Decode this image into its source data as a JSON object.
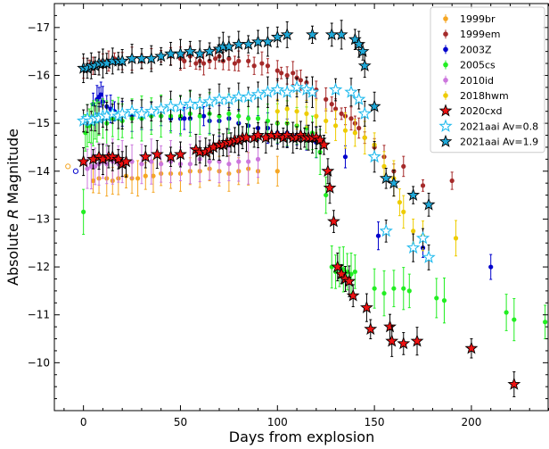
{
  "chart_data": {
    "type": "scatter",
    "xlabel": "Days from explosion",
    "ylabel_prefix": "Absolute ",
    "ylabel_var": "R",
    "ylabel_suffix": " Magnitude",
    "xlim": [
      -15,
      240
    ],
    "ylim": [
      -9,
      -17.5
    ],
    "y_inverted": true,
    "x_ticks": [
      0,
      50,
      100,
      150,
      200
    ],
    "y_ticks": [
      -17,
      -16,
      -15,
      -14,
      -13,
      -12,
      -11,
      -10
    ],
    "x_tick_labels": [
      "0",
      "50",
      "100",
      "150",
      "200"
    ],
    "y_tick_labels": [
      "−17",
      "−16",
      "−15",
      "−14",
      "−13",
      "−12",
      "−11",
      "−10"
    ],
    "grid": false,
    "legend_position": "top-right",
    "legend": [
      {
        "label": "1999br",
        "series": 0
      },
      {
        "label": "1999em",
        "series": 1
      },
      {
        "label": "2003Z",
        "series": 2
      },
      {
        "label": "2005cs",
        "series": 3
      },
      {
        "label": "2010id",
        "series": 4
      },
      {
        "label": "2018hwm",
        "series": 5
      },
      {
        "label": "2020cxd",
        "series": 6
      },
      {
        "label": "2021aai Av=0.8",
        "series": 7
      },
      {
        "label": "2021aai Av=1.9",
        "series": 8
      }
    ],
    "series": [
      {
        "name": "1999br",
        "marker": "circle",
        "color": "#f5a623",
        "err": 0.25,
        "x": [
          5,
          8,
          12,
          15,
          18,
          22,
          25,
          28,
          32,
          36,
          40,
          45,
          50,
          55,
          60,
          65,
          70,
          75,
          80,
          85,
          90,
          100
        ],
        "y": [
          -13.8,
          -13.85,
          -13.85,
          -13.8,
          -13.85,
          -13.9,
          -13.85,
          -13.85,
          -13.9,
          -13.9,
          -13.95,
          -13.95,
          -13.95,
          -14.0,
          -14.0,
          -14.05,
          -14.0,
          -13.95,
          -14.0,
          -14.05,
          -14.0,
          -14.0
        ]
      },
      {
        "name": "1999em",
        "marker": "circle",
        "color": "#a52a2a",
        "err": 0.12,
        "x": [
          0,
          3,
          5,
          8,
          10,
          13,
          16,
          20,
          25,
          30,
          35,
          40,
          45,
          50,
          52,
          55,
          58,
          60,
          62,
          65,
          68,
          70,
          72,
          75,
          78,
          80,
          85,
          88,
          92,
          95,
          100,
          102,
          105,
          108,
          110,
          112,
          115,
          120,
          125,
          128,
          130,
          133,
          135,
          138,
          140,
          142,
          145,
          150,
          155,
          160,
          165,
          175,
          190
        ],
        "y": [
          -16.15,
          -16.2,
          -16.2,
          -16.25,
          -16.3,
          -16.3,
          -16.35,
          -16.3,
          -16.35,
          -16.3,
          -16.35,
          -16.4,
          -16.4,
          -16.35,
          -16.3,
          -16.4,
          -16.25,
          -16.3,
          -16.25,
          -16.3,
          -16.35,
          -16.4,
          -16.3,
          -16.35,
          -16.25,
          -16.3,
          -16.3,
          -16.2,
          -16.25,
          -16.2,
          -16.1,
          -16.05,
          -16.0,
          -16.05,
          -15.95,
          -15.9,
          -15.85,
          -15.7,
          -15.5,
          -15.4,
          -15.3,
          -15.2,
          -15.15,
          -15.1,
          -15.0,
          -14.9,
          -14.7,
          -14.5,
          -14.3,
          -14.0,
          -14.1,
          -13.7,
          -13.8
        ]
      },
      {
        "name": "2003Z",
        "marker": "circle",
        "color": "#0000cc",
        "err": 0.2,
        "x": [
          5,
          7,
          8,
          9,
          10,
          12,
          14,
          16,
          20,
          25,
          30,
          35,
          40,
          45,
          50,
          52,
          55,
          62,
          65,
          70,
          75,
          80,
          85,
          90,
          95,
          100,
          105,
          110,
          115,
          120,
          135,
          152,
          175,
          210
        ],
        "y": [
          -15.4,
          -15.5,
          -15.55,
          -15.6,
          -15.45,
          -15.35,
          -15.3,
          -15.25,
          -15.2,
          -15.15,
          -15.1,
          -15.15,
          -15.15,
          -15.1,
          -15.1,
          -15.1,
          -15.1,
          -15.15,
          -15.05,
          -15.05,
          -15.1,
          -15.0,
          -14.95,
          -14.9,
          -14.9,
          -14.8,
          -14.8,
          -14.75,
          -14.7,
          -14.6,
          -14.3,
          -12.65,
          -12.4,
          -12.0
        ]
      },
      {
        "name": "2005cs",
        "marker": "circle",
        "color": "#22ee22",
        "err": 0.35,
        "x": [
          0,
          1,
          2,
          3,
          4,
          5,
          6,
          7,
          8,
          10,
          12,
          15,
          18,
          20,
          25,
          30,
          35,
          40,
          45,
          50,
          55,
          60,
          65,
          70,
          75,
          80,
          85,
          90,
          95,
          100,
          105,
          110,
          115,
          118,
          120,
          122,
          125,
          128,
          130,
          132,
          134,
          136,
          138,
          140,
          150,
          155,
          160,
          165,
          168,
          182,
          186,
          218,
          222,
          238
        ],
        "y": [
          -13.15,
          -14.8,
          -14.95,
          -14.95,
          -15.0,
          -15.0,
          -15.05,
          -15.05,
          -15.1,
          -15.1,
          -15.0,
          -15.1,
          -15.1,
          -15.05,
          -15.1,
          -15.1,
          -15.15,
          -15.15,
          -15.15,
          -15.15,
          -15.2,
          -15.15,
          -15.2,
          -15.15,
          -15.2,
          -15.15,
          -15.1,
          -15.1,
          -15.05,
          -15.0,
          -15.0,
          -14.95,
          -14.9,
          -14.8,
          -14.7,
          -14.4,
          -13.5,
          -12.0,
          -11.9,
          -12.0,
          -11.95,
          -11.9,
          -11.85,
          -11.9,
          -11.55,
          -11.45,
          -11.55,
          -11.55,
          -11.5,
          -11.35,
          -11.3,
          -11.05,
          -10.9,
          -10.85
        ]
      },
      {
        "name": "2010id",
        "marker": "circle",
        "color": "#cc77dd",
        "err": 0.35,
        "x": [
          2,
          4,
          6,
          8,
          10,
          12,
          15,
          18,
          20,
          25,
          30,
          35,
          40,
          45,
          50,
          55,
          60,
          65,
          70,
          75,
          80,
          85,
          90
        ],
        "y": [
          -14.05,
          -14.1,
          -14.1,
          -14.15,
          -14.2,
          -14.15,
          -14.2,
          -14.15,
          -14.2,
          -14.2,
          -14.15,
          -14.2,
          -14.15,
          -14.2,
          -14.15,
          -14.15,
          -14.25,
          -14.2,
          -14.2,
          -14.15,
          -14.2,
          -14.2,
          -14.25
        ]
      },
      {
        "name": "2018hwm",
        "marker": "circle",
        "color": "#eecc00",
        "err": 0.25,
        "x": [
          100,
          105,
          110,
          115,
          120,
          125,
          130,
          135,
          140,
          145,
          150,
          155,
          160,
          163,
          165,
          170,
          175,
          192
        ],
        "y": [
          -15.25,
          -15.3,
          -15.25,
          -15.2,
          -15.15,
          -15.05,
          -14.95,
          -14.85,
          -14.8,
          -14.7,
          -14.55,
          -14.1,
          -13.85,
          -13.35,
          -13.15,
          -12.75,
          -12.65,
          -12.6
        ]
      },
      {
        "name": "2020cxd",
        "marker": "star",
        "color": "#ee1111",
        "err": 0.2,
        "x": [
          0,
          5,
          8,
          10,
          13,
          15,
          18,
          20,
          22,
          32,
          38,
          45,
          50,
          58,
          60,
          63,
          65,
          67,
          70,
          72,
          74,
          76,
          78,
          80,
          82,
          84,
          88,
          90,
          94,
          97,
          100,
          103,
          105,
          108,
          110,
          112,
          114,
          116,
          118,
          120,
          122,
          124,
          126,
          127,
          129,
          131,
          133,
          135,
          137,
          139,
          146,
          148,
          158,
          159,
          165,
          172,
          200,
          222
        ],
        "y": [
          -14.2,
          -14.25,
          -14.3,
          -14.25,
          -14.3,
          -14.3,
          -14.25,
          -14.15,
          -14.2,
          -14.3,
          -14.35,
          -14.3,
          -14.35,
          -14.45,
          -14.4,
          -14.4,
          -14.45,
          -14.5,
          -14.55,
          -14.55,
          -14.6,
          -14.6,
          -14.65,
          -14.65,
          -14.7,
          -14.7,
          -14.7,
          -14.75,
          -14.7,
          -14.75,
          -14.75,
          -14.7,
          -14.75,
          -14.7,
          -14.7,
          -14.75,
          -14.7,
          -14.7,
          -14.7,
          -14.7,
          -14.65,
          -14.55,
          -14.0,
          -13.65,
          -12.95,
          -12.0,
          -11.85,
          -11.75,
          -11.7,
          -11.4,
          -11.15,
          -10.7,
          -10.75,
          -10.45,
          -10.4,
          -10.45,
          -10.3,
          -9.55
        ]
      },
      {
        "name": "2021aai Av=0.8",
        "marker": "star-open",
        "color": "#22bbee",
        "err": 0.2,
        "x": [
          0,
          2,
          4,
          6,
          8,
          10,
          12,
          15,
          18,
          20,
          25,
          30,
          35,
          40,
          45,
          50,
          55,
          60,
          65,
          70,
          75,
          80,
          85,
          90,
          95,
          100,
          105,
          110,
          115,
          118,
          130,
          138,
          142,
          145,
          150,
          156,
          170,
          175,
          178
        ],
        "y": [
          -15.05,
          -15.1,
          -15.05,
          -15.1,
          -15.1,
          -15.15,
          -15.15,
          -15.2,
          -15.15,
          -15.2,
          -15.25,
          -15.2,
          -15.25,
          -15.3,
          -15.35,
          -15.35,
          -15.4,
          -15.4,
          -15.45,
          -15.5,
          -15.5,
          -15.55,
          -15.55,
          -15.6,
          -15.65,
          -15.7,
          -15.65,
          -15.75,
          -15.7,
          -15.65,
          -15.7,
          -15.65,
          -15.5,
          -15.2,
          -14.3,
          -12.75,
          -12.4,
          -12.6,
          -12.2
        ]
      },
      {
        "name": "2021aai Av=1.9",
        "marker": "star",
        "color": "#1fa8d8",
        "err": 0.18,
        "x": [
          0,
          2,
          4,
          6,
          8,
          10,
          12,
          15,
          18,
          20,
          25,
          30,
          35,
          40,
          45,
          50,
          55,
          60,
          65,
          70,
          72,
          75,
          80,
          85,
          90,
          95,
          100,
          105,
          118,
          128,
          133,
          140,
          142,
          144,
          145,
          150,
          156,
          160,
          170,
          178
        ],
        "y": [
          -16.15,
          -16.15,
          -16.2,
          -16.2,
          -16.25,
          -16.25,
          -16.25,
          -16.3,
          -16.3,
          -16.3,
          -16.35,
          -16.35,
          -16.35,
          -16.4,
          -16.45,
          -16.45,
          -16.5,
          -16.45,
          -16.5,
          -16.55,
          -16.6,
          -16.6,
          -16.65,
          -16.65,
          -16.7,
          -16.7,
          -16.8,
          -16.85,
          -16.85,
          -16.85,
          -16.85,
          -16.75,
          -16.65,
          -16.5,
          -16.2,
          -15.35,
          -13.85,
          -13.75,
          -13.5,
          -13.3
        ]
      }
    ],
    "open_points": [
      {
        "x": -8,
        "y": -14.1,
        "color": "#f5a623"
      },
      {
        "x": -4,
        "y": -14.0,
        "color": "#0000cc"
      }
    ]
  }
}
